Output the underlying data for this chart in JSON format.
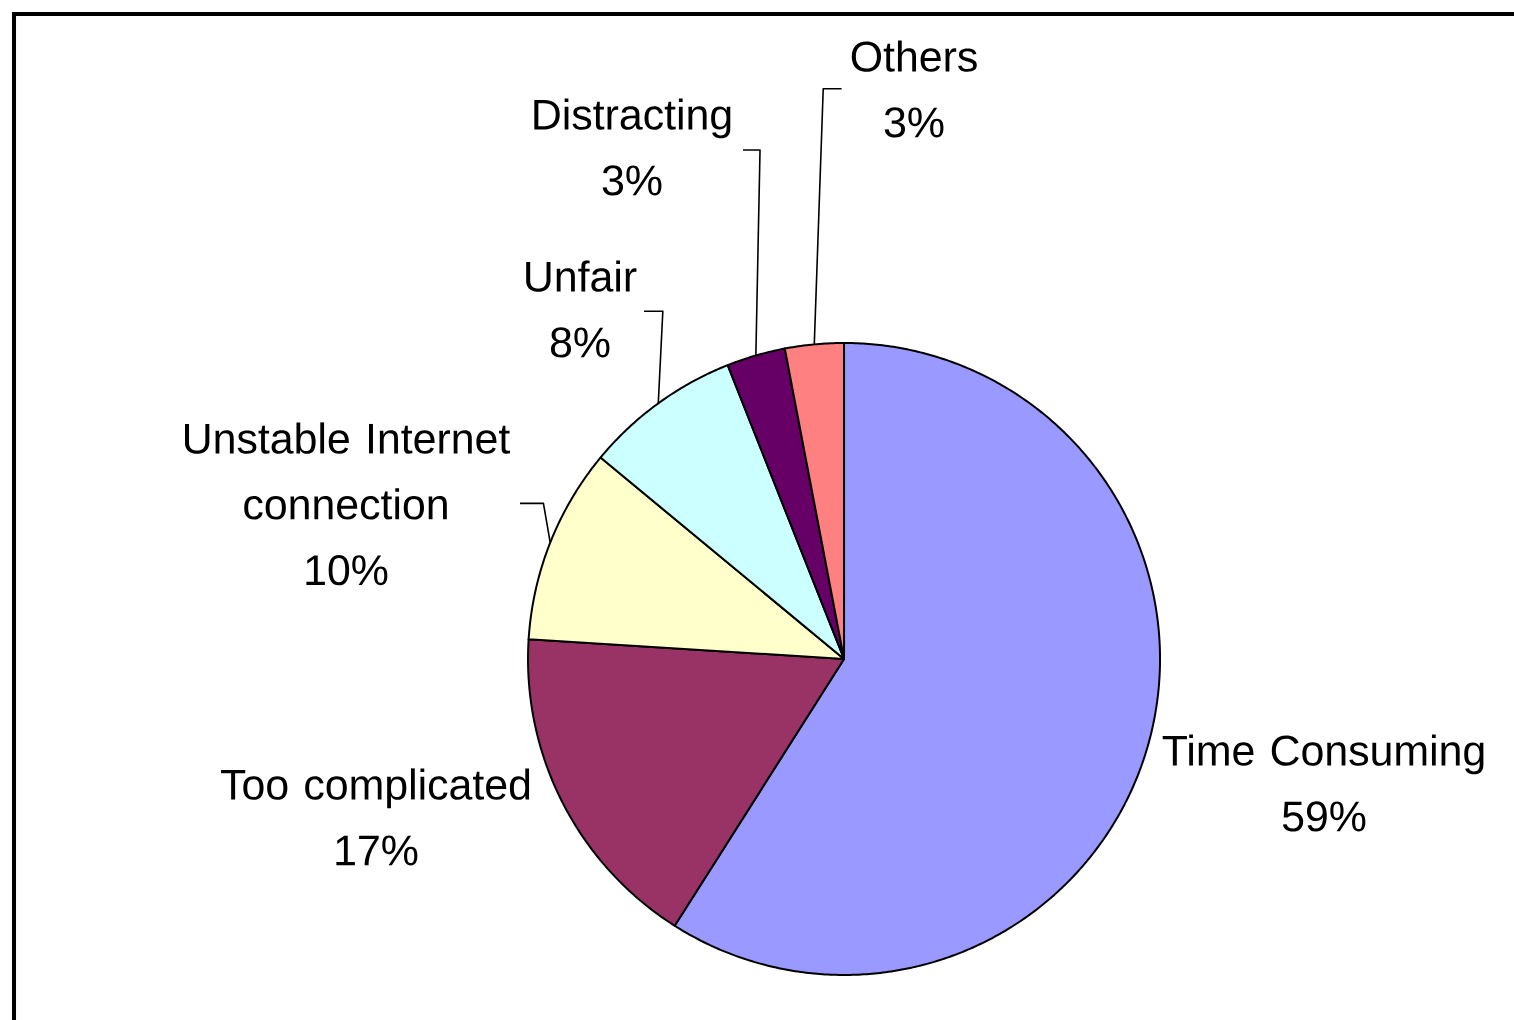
{
  "chart_data": {
    "type": "pie",
    "categories": [
      "Time Consuming",
      "Too complicated",
      "Unstable Internet connection",
      "Unfair",
      "Distracting",
      "Others"
    ],
    "values": [
      59,
      17,
      10,
      8,
      3,
      3
    ],
    "value_labels": [
      "59%",
      "17%",
      "10%",
      "8%",
      "3%",
      "3%"
    ],
    "colors": [
      "#9999ff",
      "#993366",
      "#ffffcc",
      "#ccffff",
      "#660066",
      "#ff8080"
    ]
  }
}
